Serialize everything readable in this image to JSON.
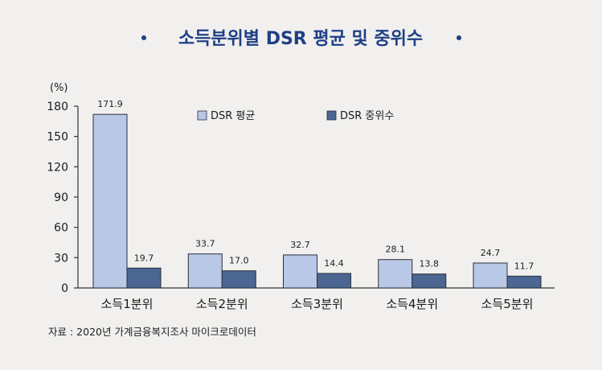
{
  "chart_data": {
    "type": "bar",
    "title": "소득분위별 DSR 평균 및 중위수",
    "ylabel": "(%)",
    "xlabel": "",
    "categories": [
      "소득1분위",
      "소득2분위",
      "소득3분위",
      "소득4분위",
      "소득5분위"
    ],
    "series": [
      {
        "name": "DSR 평균",
        "values": [
          171.9,
          33.7,
          32.7,
          28.1,
          24.7
        ],
        "color": "#b9c8e6"
      },
      {
        "name": "DSR 중위수",
        "values": [
          19.7,
          17.0,
          14.4,
          13.8,
          11.7
        ],
        "color": "#4b6691"
      }
    ],
    "value_labels": [
      [
        "171.9",
        "33.7",
        "32.7",
        "28.1",
        "24.7"
      ],
      [
        "19.7",
        "17.0",
        "14.4",
        "13.8",
        "11.7"
      ]
    ],
    "yticks": [
      0,
      30,
      60,
      90,
      120,
      150,
      180
    ],
    "ylim": [
      0,
      180
    ],
    "grid": false,
    "legend_position": "top",
    "source": "자료 : 2020년 가계금융복지조사 마이크로데이터"
  },
  "colors": {
    "title": "#1f3f86",
    "background": "#f1f0ee",
    "axis": "#333333"
  }
}
